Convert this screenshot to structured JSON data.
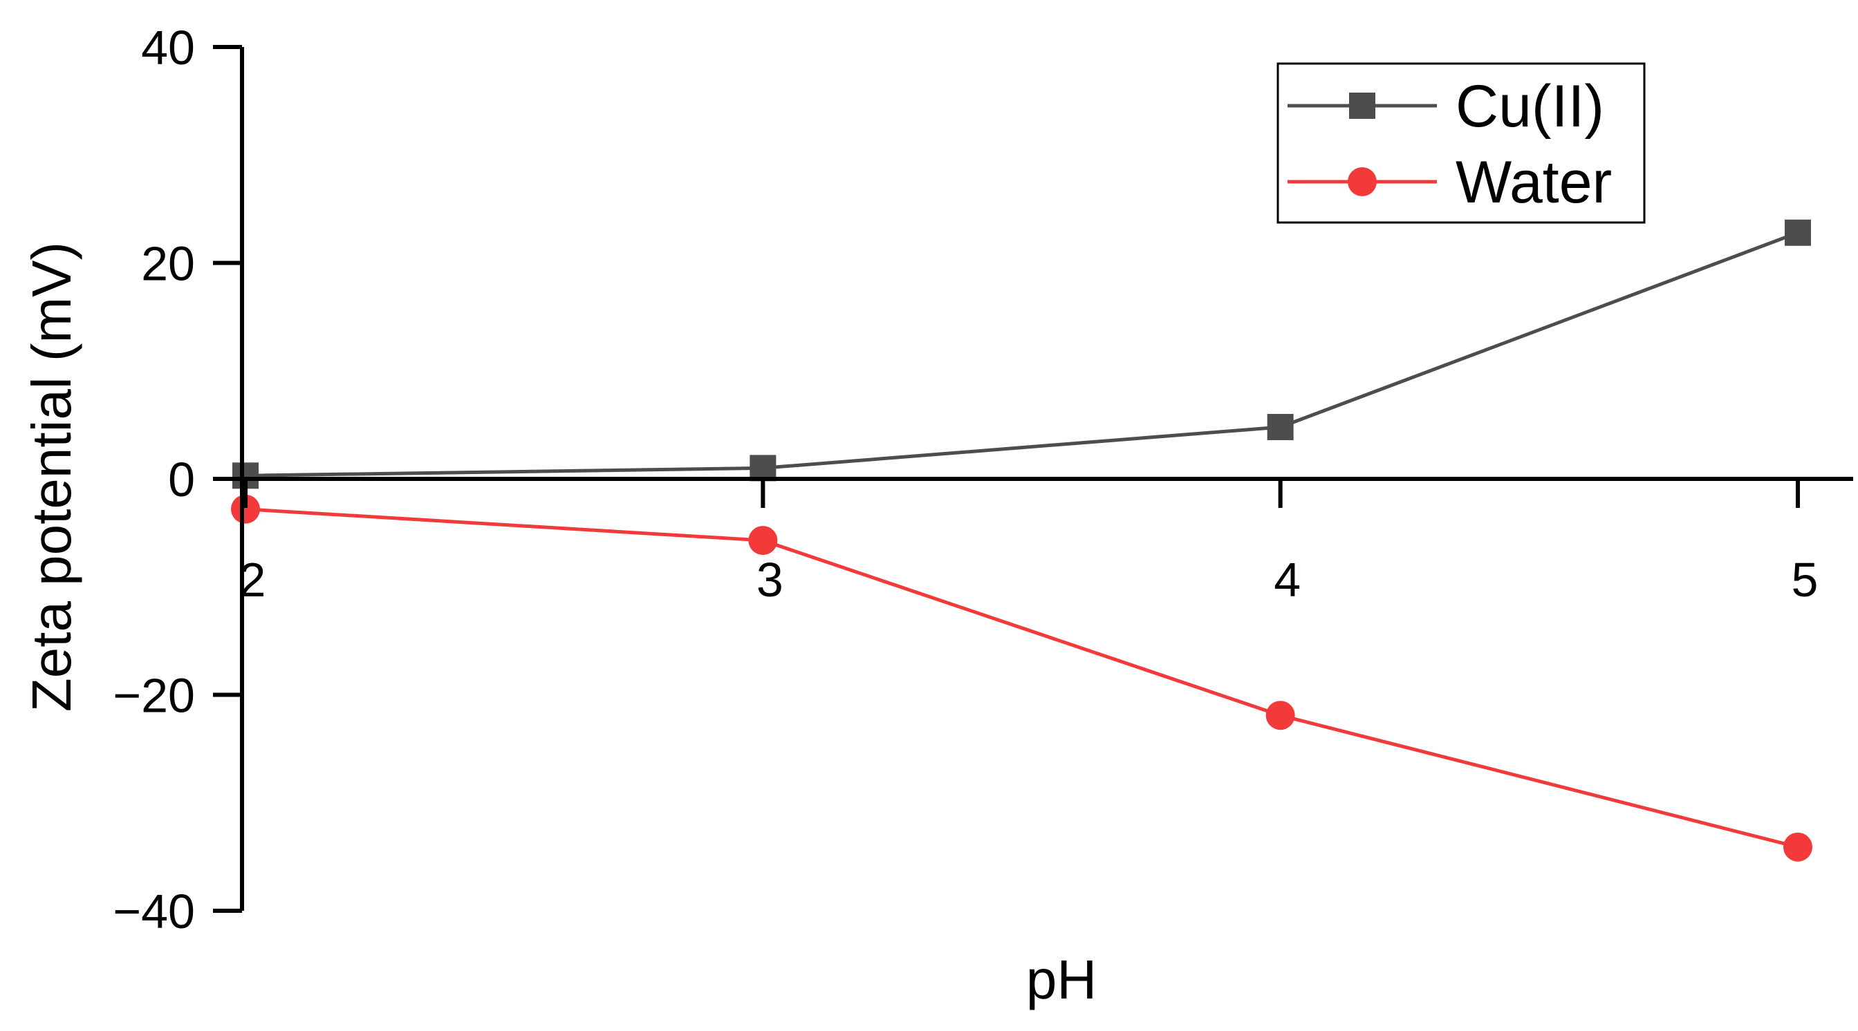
{
  "chart_data": {
    "type": "line",
    "title": "",
    "xlabel": "pH",
    "ylabel": "Zeta potential (mV)",
    "x": [
      2,
      3,
      4,
      5
    ],
    "xlim": [
      2,
      5
    ],
    "ylim": [
      -40,
      40
    ],
    "xticks": [
      2,
      3,
      4,
      5
    ],
    "yticks": [
      -40,
      -20,
      0,
      20,
      40
    ],
    "x_tick_labels": [
      "2",
      "3",
      "4",
      "5"
    ],
    "y_tick_labels": [
      "−40",
      "−20",
      "0",
      "20",
      "40"
    ],
    "grid": false,
    "legend_position": "top-right",
    "series": [
      {
        "name": "Cu(II)",
        "color": "#4d4d4d",
        "marker": "square",
        "values": [
          0.3,
          1.0,
          4.8,
          22.8
        ]
      },
      {
        "name": "Water",
        "color": "#f23a3a",
        "marker": "circle",
        "values": [
          -2.8,
          -5.7,
          -21.9,
          -34.1
        ]
      }
    ]
  }
}
